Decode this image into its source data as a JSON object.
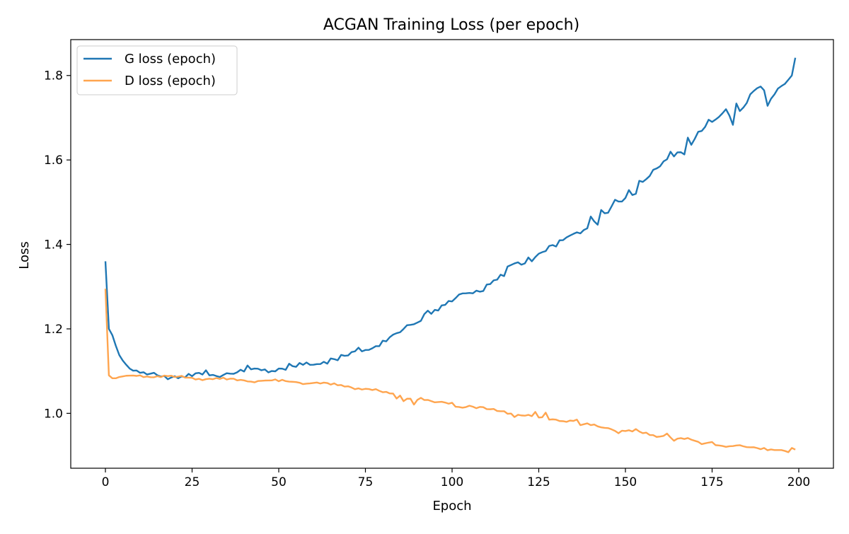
{
  "chart_data": {
    "type": "line",
    "title": "ACGAN Training Loss (per epoch)",
    "xlabel": "Epoch",
    "ylabel": "Loss",
    "xlim": [
      -10,
      210
    ],
    "ylim": [
      0.87,
      1.885
    ],
    "xticks": [
      0,
      25,
      50,
      75,
      100,
      125,
      150,
      175,
      200
    ],
    "yticks": [
      1.0,
      1.2,
      1.4,
      1.6,
      1.8
    ],
    "xtick_labels": [
      "0",
      "25",
      "50",
      "75",
      "100",
      "125",
      "150",
      "175",
      "200"
    ],
    "ytick_labels": [
      "1.0",
      "1.2",
      "1.4",
      "1.6",
      "1.8"
    ],
    "grid": false,
    "legend_position": "top-left",
    "series": [
      {
        "name": "G loss (epoch)",
        "color": "#1f77b4",
        "keypoints": [
          [
            0,
            1.36
          ],
          [
            1,
            1.2
          ],
          [
            2,
            1.185
          ],
          [
            3,
            1.16
          ],
          [
            4,
            1.138
          ],
          [
            5,
            1.125
          ],
          [
            6,
            1.115
          ],
          [
            7,
            1.106
          ],
          [
            8,
            1.101
          ],
          [
            10,
            1.096
          ],
          [
            12,
            1.092
          ],
          [
            15,
            1.09
          ],
          [
            20,
            1.088
          ],
          [
            25,
            1.088
          ],
          [
            30,
            1.09
          ],
          [
            35,
            1.095
          ],
          [
            40,
            1.099
          ],
          [
            45,
            1.102
          ],
          [
            50,
            1.106
          ],
          [
            55,
            1.11
          ],
          [
            60,
            1.115
          ],
          [
            63,
            1.122
          ],
          [
            65,
            1.13
          ],
          [
            70,
            1.137
          ],
          [
            75,
            1.15
          ],
          [
            80,
            1.172
          ],
          [
            85,
            1.192
          ],
          [
            90,
            1.215
          ],
          [
            92,
            1.235
          ],
          [
            95,
            1.245
          ],
          [
            100,
            1.265
          ],
          [
            105,
            1.285
          ],
          [
            110,
            1.305
          ],
          [
            115,
            1.325
          ],
          [
            118,
            1.355
          ],
          [
            120,
            1.352
          ],
          [
            125,
            1.378
          ],
          [
            130,
            1.395
          ],
          [
            135,
            1.425
          ],
          [
            140,
            1.448
          ],
          [
            145,
            1.475
          ],
          [
            150,
            1.51
          ],
          [
            155,
            1.548
          ],
          [
            160,
            1.585
          ],
          [
            165,
            1.618
          ],
          [
            170,
            1.65
          ],
          [
            175,
            1.69
          ],
          [
            180,
            1.705
          ],
          [
            185,
            1.735
          ],
          [
            188,
            1.77
          ],
          [
            190,
            1.765
          ],
          [
            192,
            1.745
          ],
          [
            195,
            1.78
          ],
          [
            198,
            1.8
          ],
          [
            199,
            1.842
          ]
        ],
        "noise": 0.006,
        "spikes": [
          [
            29,
            0.006
          ],
          [
            41,
            0.005
          ],
          [
            53,
            0.006
          ],
          [
            62,
            0.004
          ],
          [
            67,
            -0.004
          ],
          [
            73,
            0.004
          ],
          [
            93,
            0.012
          ],
          [
            103,
            0.006
          ],
          [
            109,
            -0.008
          ],
          [
            116,
            0.006
          ],
          [
            122,
            0.012
          ],
          [
            128,
            0.006
          ],
          [
            140,
            0.018
          ],
          [
            142,
            -0.01
          ],
          [
            143,
            0.012
          ],
          [
            147,
            0.015
          ],
          [
            151,
            0.014
          ],
          [
            153,
            -0.01
          ],
          [
            154,
            0.018
          ],
          [
            163,
            0.01
          ],
          [
            167,
            -0.012
          ],
          [
            168,
            0.02
          ],
          [
            171,
            0.012
          ],
          [
            174,
            0.01
          ],
          [
            178,
            0.01
          ],
          [
            179,
            0.02
          ],
          [
            181,
            -0.02
          ],
          [
            182,
            0.02
          ],
          [
            186,
            0.012
          ],
          [
            191,
            -0.03
          ],
          [
            195,
            -0.005
          ]
        ]
      },
      {
        "name": "D loss (epoch)",
        "color": "#ffa54f",
        "keypoints": [
          [
            0,
            1.295
          ],
          [
            1,
            1.09
          ],
          [
            2,
            1.083
          ],
          [
            3,
            1.083
          ],
          [
            4,
            1.086
          ],
          [
            6,
            1.089
          ],
          [
            10,
            1.09
          ],
          [
            15,
            1.088
          ],
          [
            20,
            1.086
          ],
          [
            25,
            1.084
          ],
          [
            30,
            1.082
          ],
          [
            35,
            1.08
          ],
          [
            40,
            1.078
          ],
          [
            45,
            1.077
          ],
          [
            50,
            1.076
          ],
          [
            55,
            1.074
          ],
          [
            60,
            1.072
          ],
          [
            65,
            1.068
          ],
          [
            70,
            1.064
          ],
          [
            75,
            1.058
          ],
          [
            80,
            1.05
          ],
          [
            85,
            1.042
          ],
          [
            90,
            1.032
          ],
          [
            95,
            1.026
          ],
          [
            100,
            1.025
          ],
          [
            102,
            1.015
          ],
          [
            105,
            1.018
          ],
          [
            110,
            1.01
          ],
          [
            115,
            1.005
          ],
          [
            120,
            0.995
          ],
          [
            125,
            0.99
          ],
          [
            130,
            0.985
          ],
          [
            135,
            0.982
          ],
          [
            137,
            0.972
          ],
          [
            140,
            0.972
          ],
          [
            145,
            0.965
          ],
          [
            150,
            0.958
          ],
          [
            155,
            0.953
          ],
          [
            160,
            0.945
          ],
          [
            162,
            0.952
          ],
          [
            164,
            0.935
          ],
          [
            165,
            0.94
          ],
          [
            170,
            0.935
          ],
          [
            172,
            0.927
          ],
          [
            175,
            0.932
          ],
          [
            177,
            0.924
          ],
          [
            180,
            0.922
          ],
          [
            185,
            0.92
          ],
          [
            190,
            0.918
          ],
          [
            195,
            0.913
          ],
          [
            197,
            0.908
          ],
          [
            198,
            0.918
          ],
          [
            199,
            0.914
          ]
        ],
        "noise": 0.003,
        "spikes": [
          [
            84,
            -0.006
          ],
          [
            86,
            -0.008
          ],
          [
            89,
            -0.01
          ],
          [
            91,
            0.006
          ],
          [
            107,
            -0.006
          ],
          [
            118,
            -0.004
          ],
          [
            124,
            0.008
          ],
          [
            127,
            0.012
          ],
          [
            136,
            0.006
          ],
          [
            148,
            -0.006
          ],
          [
            153,
            0.004
          ],
          [
            174,
            0.004
          ]
        ]
      }
    ]
  }
}
